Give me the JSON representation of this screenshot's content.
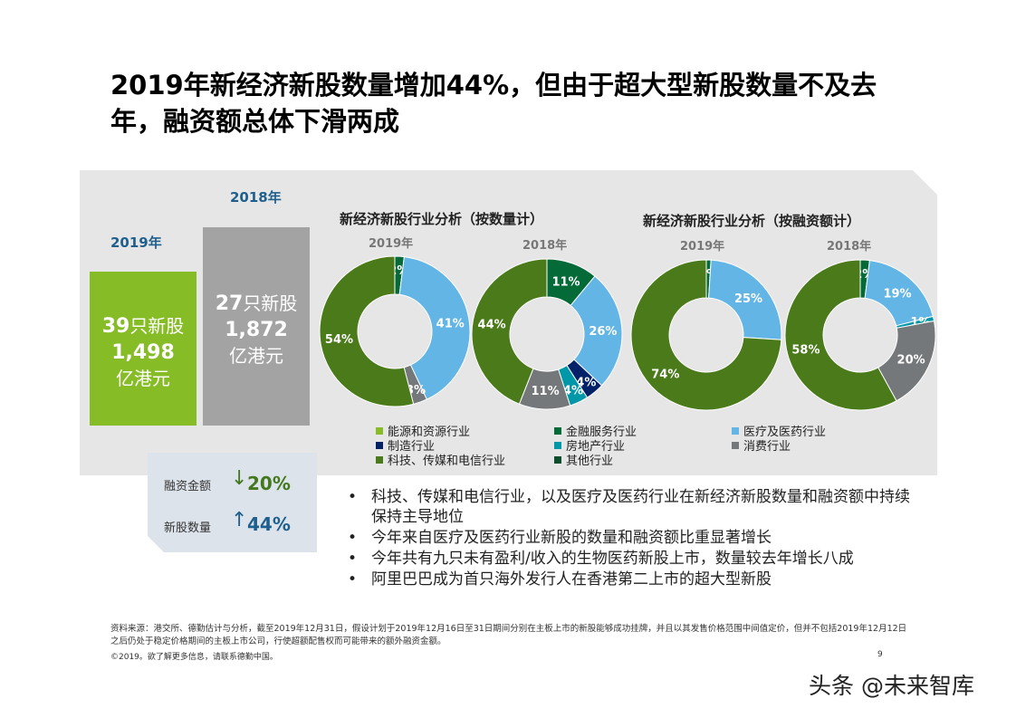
{
  "title": "2019年新经济新股数量增加44%，但由于超大型新股数量不及去年，融资额总体下滑两成",
  "summary_boxes": {
    "y2019": {
      "year": "2019年",
      "count": "39",
      "count_unit": "只新股",
      "amount": "1,498",
      "amount_unit": "亿港元",
      "color": "#86bc25"
    },
    "y2018": {
      "year": "2018年",
      "count": "27",
      "count_unit": "只新股",
      "amount": "1,872",
      "amount_unit": "亿港元",
      "color": "#a3a3a3"
    }
  },
  "changes": [
    {
      "label": "融资金额",
      "direction": "down",
      "value": "20%",
      "color": "#43781e"
    },
    {
      "label": "新股数量",
      "direction": "up",
      "value": "44%",
      "color": "#1f5f8e"
    }
  ],
  "chart_data": [
    {
      "type": "pie",
      "donut": true,
      "group_title": "新经济新股行业分析（按数量计）",
      "title": "2019年",
      "slices": [
        {
          "name": "金融服务行业",
          "value": 2
        },
        {
          "name": "医疗及医药行业",
          "value": 41
        },
        {
          "name": "消费行业",
          "value": 3
        },
        {
          "name": "科技、传媒和电信行业",
          "value": 54
        }
      ]
    },
    {
      "type": "pie",
      "donut": true,
      "group_title": "新经济新股行业分析（按数量计）",
      "title": "2018年",
      "slices": [
        {
          "name": "金融服务行业",
          "value": 11
        },
        {
          "name": "医疗及医药行业",
          "value": 26
        },
        {
          "name": "制造行业",
          "value": 4
        },
        {
          "name": "房地产行业",
          "value": 4
        },
        {
          "name": "消费行业",
          "value": 11
        },
        {
          "name": "科技、传媒和电信行业",
          "value": 44
        }
      ]
    },
    {
      "type": "pie",
      "donut": true,
      "group_title": "新经济新股行业分析（按融资额计）",
      "title": "2019年",
      "slices": [
        {
          "name": "金融服务行业",
          "value": 1
        },
        {
          "name": "医疗及医药行业",
          "value": 25
        },
        {
          "name": "科技、传媒和电信行业",
          "value": 74
        }
      ]
    },
    {
      "type": "pie",
      "donut": true,
      "group_title": "新经济新股行业分析（按融资额计）",
      "title": "2018年",
      "slices": [
        {
          "name": "金融服务行业",
          "value": 2
        },
        {
          "name": "医疗及医药行业",
          "value": 19
        },
        {
          "name": "房地产行业",
          "value": 1
        },
        {
          "name": "消费行业",
          "value": 20
        },
        {
          "name": "科技、传媒和电信行业",
          "value": 58
        }
      ]
    }
  ],
  "chart_group_titles": [
    "新经济新股行业分析（按数量计）",
    "新经济新股行业分析（按融资额计）"
  ],
  "legend": [
    {
      "name": "能源和资源行业",
      "color": "#86bc25"
    },
    {
      "name": "金融服务行业",
      "color": "#046a38"
    },
    {
      "name": "医疗及医药行业",
      "color": "#62b5e5"
    },
    {
      "name": "制造行业",
      "color": "#012169"
    },
    {
      "name": "房地产行业",
      "color": "#0097a9"
    },
    {
      "name": "消费行业",
      "color": "#75787b"
    },
    {
      "name": "科技、传媒和电信行业",
      "color": "#4a7a1a"
    },
    {
      "name": "其他行业",
      "color": "#0b4d2c"
    }
  ],
  "bullets": [
    "科技、传媒和电信行业，以及医疗及医药行业在新经济新股数量和融资额中持续保持主导地位",
    "今年来自医疗及医药行业新股的数量和融资额比重显著增长",
    "今年共有九只未有盈利/收入的生物医药新股上市，数量较去年增长八成",
    "阿里巴巴成为首只海外发行人在香港第二上市的超大型新股"
  ],
  "footnote": "资料来源：港交所、德勤估计与分析，截至2019年12月31日，假设计划于2019年12月16日至31日期间分别在主板上市的新股能够成功挂牌，并且以其发售价格范围中间值定价，但并不包括2019年12月12日之后仍处于稳定价格期间的主板上市公司，行使超额配售权而可能带来的额外融资金额。",
  "copyright": "©2019。欲了解更多信息，请联系德勤中国。",
  "page_number": "9",
  "watermark": "头条 @未来智库"
}
